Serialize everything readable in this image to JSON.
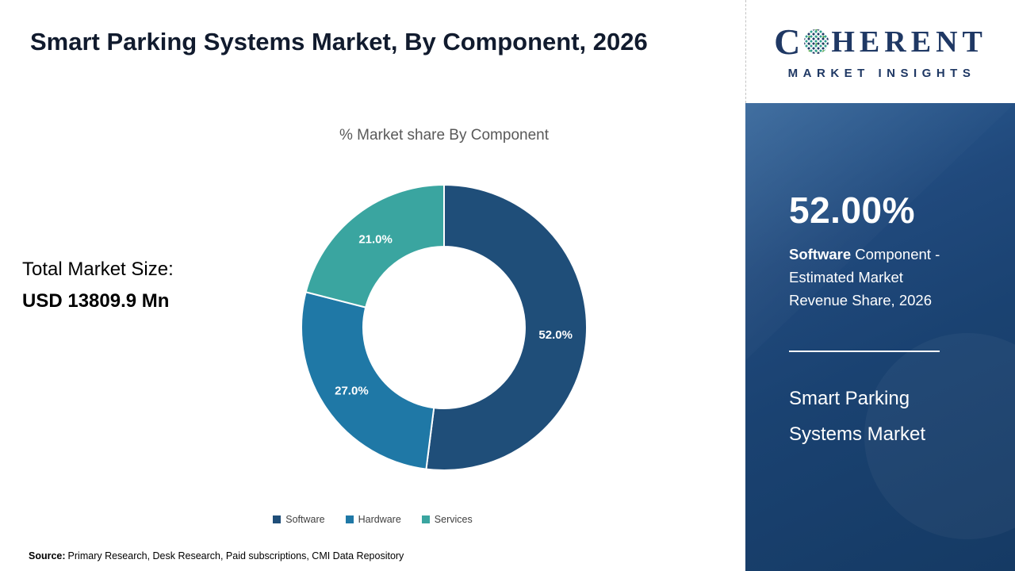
{
  "header": {
    "title": "Smart Parking Systems Market, By Component, 2026"
  },
  "total_market": {
    "label": "Total Market Size:",
    "value": "USD 13809.9 Mn"
  },
  "chart_data": {
    "type": "pie",
    "donut": true,
    "title": "% Market share By Component",
    "categories": [
      "Software",
      "Hardware",
      "Services"
    ],
    "values": [
      52.0,
      27.0,
      21.0
    ],
    "labels": [
      "52.0%",
      "27.0%",
      "21.0%"
    ],
    "colors": [
      "#1f4e79",
      "#1f78a6",
      "#3aa5a0"
    ],
    "legend_position": "bottom",
    "start_angle_deg": 0,
    "direction": "clockwise"
  },
  "source": {
    "label": "Source:",
    "text": "Primary Research, Desk Research, Paid subscriptions, CMI Data Repository"
  },
  "logo": {
    "c": "C",
    "rest": "HERENT",
    "line2": "MARKET INSIGHTS",
    "brand_navy": "#1f3864",
    "globe_teal": "#2f9e8f"
  },
  "panel": {
    "stat_value": "52.00%",
    "desc_bold": "Software",
    "desc_rest": " Component - Estimated Market Revenue Share, 2026",
    "market_line1": "Smart Parking",
    "market_line2": "Systems Market",
    "background_navy": "#1a4271"
  }
}
